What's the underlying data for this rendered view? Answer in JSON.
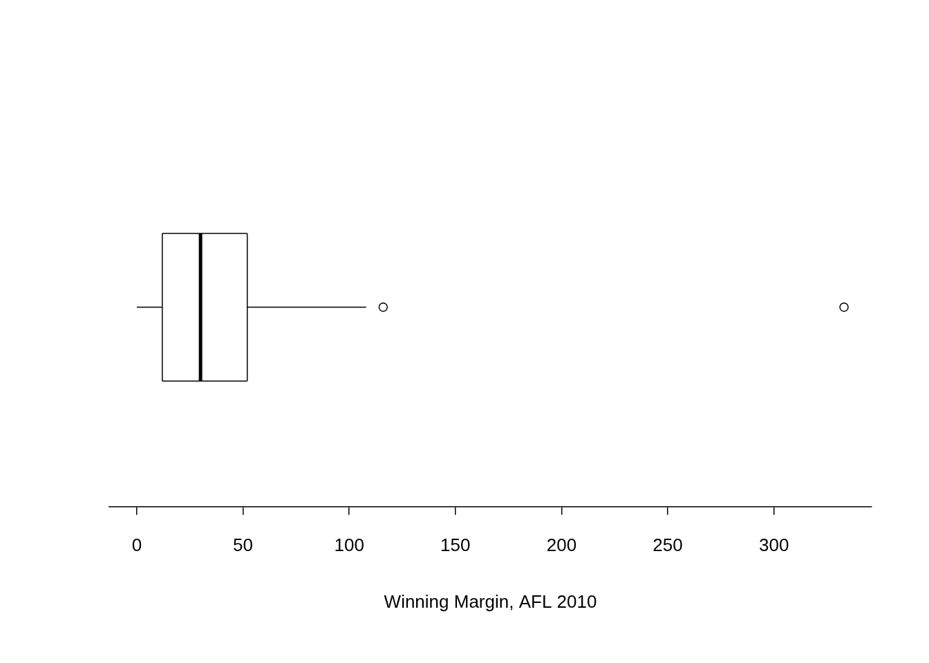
{
  "chart_data": {
    "type": "boxplot",
    "orientation": "horizontal",
    "x_label": "Winning Margin, AFL 2010",
    "whisker_low": 0,
    "q1": 12,
    "median": 30,
    "q3": 52,
    "whisker_high": 108,
    "outliers": [
      116,
      333
    ],
    "xlim": [
      -13,
      346
    ],
    "xticks": [
      0,
      50,
      100,
      150,
      200,
      250,
      300
    ],
    "color": "#000000",
    "grid": false
  }
}
